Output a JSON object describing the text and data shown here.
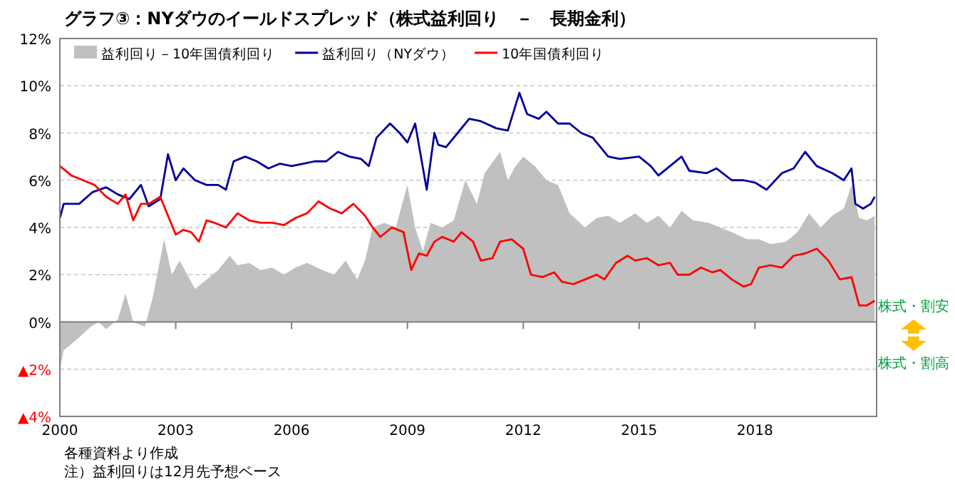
{
  "chart_data": {
    "type": "line",
    "title": "グラフ③：NYダウのイールドスプレッド（株式益利回り　－　長期金利）",
    "xlim": [
      2000,
      2021.15
    ],
    "xticks": [
      2000,
      2003,
      2006,
      2009,
      2012,
      2015,
      2018
    ],
    "ylim": [
      -4,
      12
    ],
    "yticks": [
      {
        "value": -4,
        "label": "▲4%"
      },
      {
        "value": -2,
        "label": "▲2%"
      },
      {
        "value": 0,
        "label": "0%"
      },
      {
        "value": 2,
        "label": "2%"
      },
      {
        "value": 4,
        "label": "4%"
      },
      {
        "value": 6,
        "label": "6%"
      },
      {
        "value": 8,
        "label": "8%"
      },
      {
        "value": 10,
        "label": "10%"
      },
      {
        "value": 12,
        "label": "12%"
      }
    ],
    "grid": "y",
    "legend": "top left",
    "series": [
      {
        "name": "益利回り－10年国債利回り",
        "type": "area",
        "color": "#c0c0c0",
        "x": [
          2000.0,
          2000.1,
          2000.4,
          2000.8,
          2001.0,
          2001.2,
          2001.5,
          2001.7,
          2001.9,
          2002.2,
          2002.4,
          2002.7,
          2002.9,
          2003.1,
          2003.3,
          2003.5,
          2003.8,
          2004.1,
          2004.4,
          2004.6,
          2004.9,
          2005.2,
          2005.5,
          2005.8,
          2006.1,
          2006.4,
          2006.8,
          2007.1,
          2007.4,
          2007.7,
          2007.9,
          2008.1,
          2008.4,
          2008.7,
          2009.0,
          2009.2,
          2009.4,
          2009.6,
          2009.9,
          2010.2,
          2010.5,
          2010.8,
          2011.0,
          2011.4,
          2011.6,
          2011.8,
          2012.0,
          2012.3,
          2012.6,
          2012.9,
          2013.2,
          2013.6,
          2013.9,
          2014.2,
          2014.5,
          2014.9,
          2015.2,
          2015.5,
          2015.8,
          2016.1,
          2016.4,
          2016.8,
          2017.1,
          2017.4,
          2017.8,
          2018.1,
          2018.4,
          2018.8,
          2019.1,
          2019.4,
          2019.7,
          2020.0,
          2020.3,
          2020.5,
          2020.7,
          2020.9,
          2021.1
        ],
        "values": [
          -2.0,
          -1.2,
          -0.8,
          -0.2,
          0.0,
          -0.3,
          0.1,
          1.2,
          0.0,
          -0.2,
          1.0,
          3.5,
          2.0,
          2.6,
          2.0,
          1.4,
          1.8,
          2.2,
          2.8,
          2.4,
          2.5,
          2.2,
          2.3,
          2.0,
          2.3,
          2.5,
          2.2,
          2.0,
          2.6,
          1.8,
          2.6,
          4.0,
          4.2,
          4.0,
          5.8,
          4.0,
          3.0,
          4.2,
          4.0,
          4.3,
          6.0,
          5.0,
          6.3,
          7.2,
          6.0,
          6.6,
          7.0,
          6.6,
          6.0,
          5.8,
          4.6,
          4.0,
          4.4,
          4.5,
          4.2,
          4.6,
          4.2,
          4.5,
          4.0,
          4.7,
          4.3,
          4.2,
          4.0,
          3.8,
          3.5,
          3.5,
          3.3,
          3.4,
          3.8,
          4.6,
          4.0,
          4.5,
          4.8,
          5.8,
          4.4,
          4.3,
          4.5
        ]
      },
      {
        "name": "益利回り（NYダウ）",
        "color": "#000099",
        "x": [
          2000.0,
          2000.1,
          2000.5,
          2000.85,
          2001.2,
          2001.5,
          2001.8,
          2002.1,
          2002.3,
          2002.6,
          2002.8,
          2003.0,
          2003.2,
          2003.5,
          2003.8,
          2004.1,
          2004.3,
          2004.5,
          2004.8,
          2005.1,
          2005.4,
          2005.7,
          2006.0,
          2006.3,
          2006.6,
          2006.9,
          2007.2,
          2007.5,
          2007.8,
          2008.0,
          2008.2,
          2008.55,
          2008.8,
          2009.0,
          2009.2,
          2009.5,
          2009.7,
          2009.8,
          2010.0,
          2010.3,
          2010.6,
          2010.9,
          2011.3,
          2011.6,
          2011.9,
          2012.1,
          2012.4,
          2012.6,
          2012.9,
          2013.2,
          2013.5,
          2013.8,
          2014.2,
          2014.5,
          2015.0,
          2015.3,
          2015.5,
          2015.8,
          2016.1,
          2016.3,
          2016.75,
          2017.0,
          2017.4,
          2017.7,
          2018.0,
          2018.3,
          2018.7,
          2019.0,
          2019.3,
          2019.6,
          2020.0,
          2020.3,
          2020.5,
          2020.6,
          2020.8,
          2021.0,
          2021.1
        ],
        "values": [
          4.4,
          5.0,
          5.0,
          5.5,
          5.7,
          5.4,
          5.2,
          5.8,
          4.9,
          5.2,
          7.1,
          6.0,
          6.5,
          6.0,
          5.8,
          5.8,
          5.6,
          6.8,
          7.0,
          6.8,
          6.5,
          6.7,
          6.6,
          6.7,
          6.8,
          6.8,
          7.2,
          7.0,
          6.9,
          6.6,
          7.8,
          8.4,
          8.0,
          7.6,
          8.4,
          5.6,
          8.0,
          7.5,
          7.4,
          8.0,
          8.6,
          8.5,
          8.2,
          8.1,
          9.7,
          8.8,
          8.6,
          8.9,
          8.4,
          8.4,
          8.0,
          7.8,
          7.0,
          6.9,
          7.0,
          6.6,
          6.2,
          6.6,
          7.0,
          6.4,
          6.3,
          6.5,
          6.0,
          6.0,
          5.9,
          5.6,
          6.3,
          6.5,
          7.2,
          6.6,
          6.3,
          6.0,
          6.5,
          5.0,
          4.8,
          5.0,
          5.3
        ]
      },
      {
        "name": "10年国債利回り",
        "color": "#ff0000",
        "x": [
          2000.0,
          2000.3,
          2000.6,
          2000.9,
          2001.2,
          2001.5,
          2001.7,
          2001.9,
          2002.1,
          2002.3,
          2002.6,
          2002.8,
          2003.0,
          2003.2,
          2003.4,
          2003.6,
          2003.8,
          2004.0,
          2004.3,
          2004.6,
          2004.9,
          2005.2,
          2005.5,
          2005.8,
          2006.1,
          2006.4,
          2006.7,
          2007.0,
          2007.3,
          2007.6,
          2007.9,
          2008.1,
          2008.3,
          2008.6,
          2008.9,
          2009.1,
          2009.3,
          2009.5,
          2009.7,
          2009.9,
          2010.2,
          2010.4,
          2010.7,
          2010.9,
          2011.2,
          2011.4,
          2011.7,
          2012.0,
          2012.2,
          2012.5,
          2012.8,
          2013.0,
          2013.3,
          2013.6,
          2013.9,
          2014.1,
          2014.4,
          2014.7,
          2014.9,
          2015.2,
          2015.5,
          2015.8,
          2016.0,
          2016.3,
          2016.6,
          2016.9,
          2017.1,
          2017.4,
          2017.7,
          2017.9,
          2018.1,
          2018.4,
          2018.7,
          2019.0,
          2019.3,
          2019.6,
          2019.9,
          2020.2,
          2020.5,
          2020.7,
          2020.9,
          2021.1
        ],
        "values": [
          6.6,
          6.2,
          6.0,
          5.8,
          5.3,
          5.0,
          5.4,
          4.3,
          5.0,
          5.0,
          5.3,
          4.5,
          3.7,
          3.9,
          3.8,
          3.4,
          4.3,
          4.2,
          4.0,
          4.6,
          4.3,
          4.2,
          4.2,
          4.1,
          4.4,
          4.6,
          5.1,
          4.8,
          4.6,
          5.0,
          4.5,
          4.0,
          3.6,
          4.0,
          3.8,
          2.2,
          2.9,
          2.8,
          3.4,
          3.6,
          3.4,
          3.8,
          3.4,
          2.6,
          2.7,
          3.4,
          3.5,
          3.1,
          2.0,
          1.9,
          2.1,
          1.7,
          1.6,
          1.8,
          2.0,
          1.8,
          2.5,
          2.8,
          2.6,
          2.7,
          2.4,
          2.5,
          2.0,
          2.0,
          2.3,
          2.1,
          2.2,
          1.8,
          1.5,
          1.6,
          2.3,
          2.4,
          2.3,
          2.8,
          2.9,
          3.1,
          2.6,
          1.8,
          1.9,
          0.7,
          0.7,
          0.9
        ]
      }
    ],
    "annotations": [
      "株式・割安",
      "株式・割高",
      "各種資料より作成",
      "注）益利回りは12月先予想ベース"
    ]
  }
}
